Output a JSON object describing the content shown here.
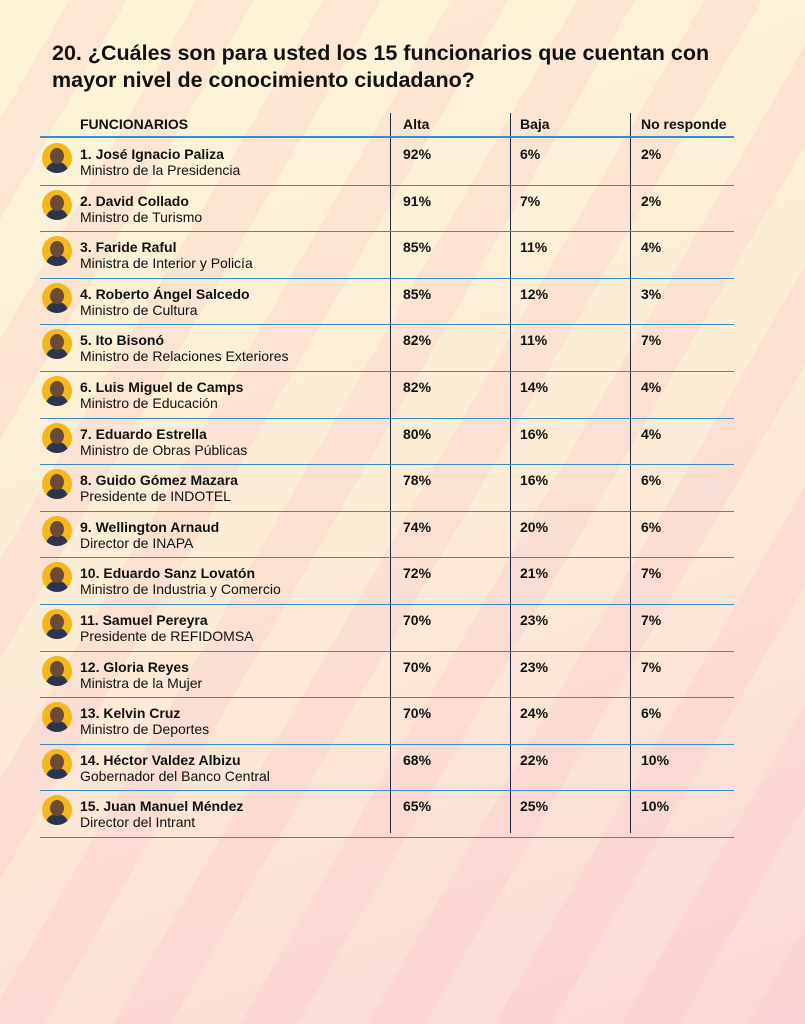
{
  "header": {
    "title": "20. ¿Cuáles son para usted los 15 funcionarios que cuentan con mayor nivel de conocimiento ciudadano?"
  },
  "table": {
    "columns": [
      "FUNCIONARIOS",
      "Alta",
      "Baja",
      "No responde"
    ],
    "rows": [
      {
        "name": "1. José Ignacio Paliza",
        "role": "Ministro de la Presidencia",
        "alta": "92%",
        "baja": "6%",
        "no_responde": "2%"
      },
      {
        "name": "2. David Collado",
        "role": "Ministro de Turismo",
        "alta": "91%",
        "baja": "7%",
        "no_responde": "2%"
      },
      {
        "name": "3. Faride Raful",
        "role": "Ministra de Interior y Policía",
        "alta": "85%",
        "baja": "11%",
        "no_responde": "4%"
      },
      {
        "name": "4. Roberto Ángel Salcedo",
        "role": "Ministro de Cultura",
        "alta": "85%",
        "baja": "12%",
        "no_responde": "3%"
      },
      {
        "name": "5. Ito Bisonó",
        "role": "Ministro de Relaciones Exteriores",
        "alta": "82%",
        "baja": "11%",
        "no_responde": "7%"
      },
      {
        "name": "6. Luis Miguel de Camps",
        "role": "Ministro de Educación",
        "alta": "82%",
        "baja": "14%",
        "no_responde": "4%"
      },
      {
        "name": "7. Eduardo Estrella",
        "role": "Ministro de Obras Públicas",
        "alta": "80%",
        "baja": "16%",
        "no_responde": "4%"
      },
      {
        "name": "8. Guido Gómez Mazara",
        "role": "Presidente de INDOTEL",
        "alta": "78%",
        "baja": "16%",
        "no_responde": "6%"
      },
      {
        "name": "9. Wellington Arnaud",
        "role": "Director de INAPA",
        "alta": "74%",
        "baja": "20%",
        "no_responde": "6%"
      },
      {
        "name": "10. Eduardo Sanz Lovatón",
        "role": "Ministro de Industria y Comercio",
        "alta": "72%",
        "baja": "21%",
        "no_responde": "7%"
      },
      {
        "name": "11. Samuel Pereyra",
        "role": "Presidente de REFIDOMSA",
        "alta": "70%",
        "baja": "23%",
        "no_responde": "7%"
      },
      {
        "name": "12. Gloria Reyes",
        "role": "Ministra de la Mujer",
        "alta": "70%",
        "baja": "23%",
        "no_responde": "7%"
      },
      {
        "name": "13. Kelvin Cruz",
        "role": "Ministro de Deportes",
        "alta": "70%",
        "baja": "24%",
        "no_responde": "6%"
      },
      {
        "name": "14. Héctor Valdez Albizu",
        "role": "Gobernador del Banco Central",
        "alta": "68%",
        "baja": "22%",
        "no_responde": "10%"
      },
      {
        "name": "15. Juan Manuel Méndez",
        "role": "Director del Intrant",
        "alta": "65%",
        "baja": "25%",
        "no_responde": "10%"
      }
    ]
  }
}
